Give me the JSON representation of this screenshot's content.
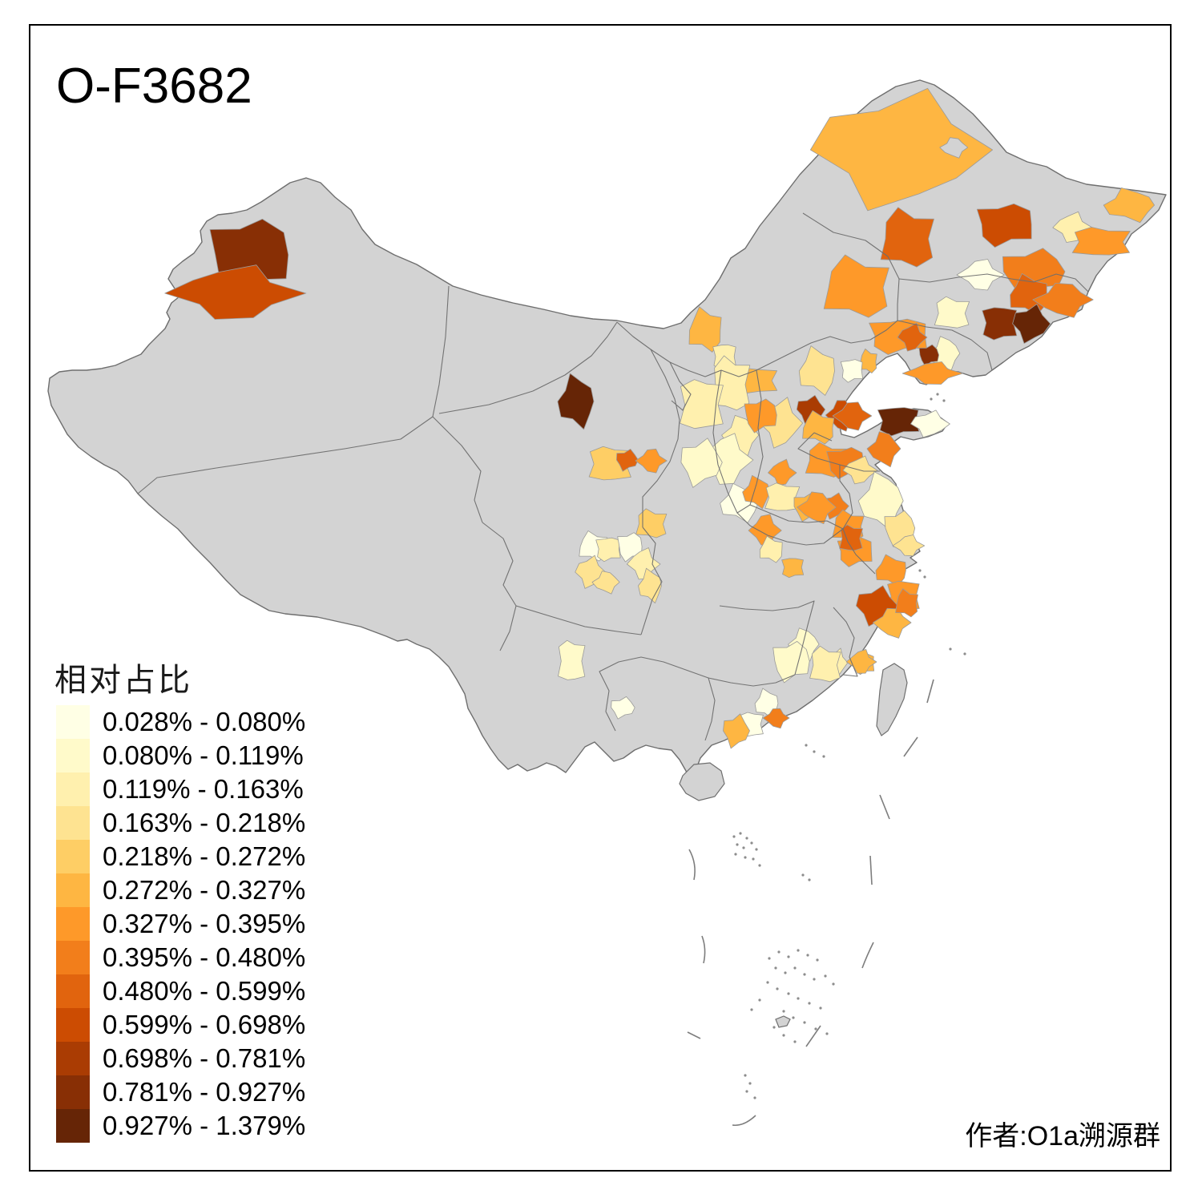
{
  "title": "O-F3682",
  "attribution": "作者:O1a溯源群",
  "legend": {
    "title": "相对占比",
    "items": [
      {
        "label": "0.028% - 0.080%",
        "color": "#FFFFE5"
      },
      {
        "label": "0.080% - 0.119%",
        "color": "#FFFACA"
      },
      {
        "label": "0.119% - 0.163%",
        "color": "#FFF0AE"
      },
      {
        "label": "0.163% - 0.218%",
        "color": "#FEE391"
      },
      {
        "label": "0.218% - 0.272%",
        "color": "#FECE65"
      },
      {
        "label": "0.272% - 0.327%",
        "color": "#FEB642"
      },
      {
        "label": "0.327% - 0.395%",
        "color": "#FE9929"
      },
      {
        "label": "0.395% - 0.480%",
        "color": "#F27E1B"
      },
      {
        "label": "0.480% - 0.599%",
        "color": "#E1640E"
      },
      {
        "label": "0.599% - 0.698%",
        "color": "#CC4C02"
      },
      {
        "label": "0.698% - 0.781%",
        "color": "#AA3C03"
      },
      {
        "label": "0.781% - 0.927%",
        "color": "#882F05"
      },
      {
        "label": "0.927% - 1.379%",
        "color": "#662506"
      }
    ]
  },
  "map": {
    "land_color": "#D3D3D3",
    "border_color": "#6E6E6E",
    "background": "#FFFFFF",
    "frame_color": "#000000",
    "regions": [
      {
        "id": "xj1",
        "class": 12
      },
      {
        "id": "xj2",
        "class": 10
      },
      {
        "id": "gs1",
        "class": 13
      },
      {
        "id": "gs2",
        "class": 5
      },
      {
        "id": "gs3",
        "class": 9
      },
      {
        "id": "gs4",
        "class": 7
      },
      {
        "id": "nm1",
        "class": 6
      },
      {
        "id": "nm2",
        "class": 3
      },
      {
        "id": "hl1",
        "class": 6
      },
      {
        "id": "hl2",
        "class": 0
      },
      {
        "id": "hl3",
        "class": 9
      },
      {
        "id": "hl4",
        "class": 10
      },
      {
        "id": "hl5",
        "class": 3
      },
      {
        "id": "hl6",
        "class": 6
      },
      {
        "id": "hl7",
        "class": 7
      },
      {
        "id": "hl8",
        "class": 8
      },
      {
        "id": "jl1",
        "class": 1
      },
      {
        "id": "jl2",
        "class": 9
      },
      {
        "id": "jl3",
        "class": 12
      },
      {
        "id": "jl4",
        "class": 13
      },
      {
        "id": "jl5",
        "class": 8
      },
      {
        "id": "jl6",
        "class": 7
      },
      {
        "id": "ln1",
        "class": 7
      },
      {
        "id": "ln2",
        "class": 9
      },
      {
        "id": "ln3",
        "class": 2
      },
      {
        "id": "ln4",
        "class": 2
      },
      {
        "id": "ln5",
        "class": 12
      },
      {
        "id": "ln6",
        "class": 7
      },
      {
        "id": "he1",
        "class": 4
      },
      {
        "id": "he2",
        "class": 6
      },
      {
        "id": "he3",
        "class": 11
      },
      {
        "id": "he4",
        "class": 10
      },
      {
        "id": "he5",
        "class": 6
      },
      {
        "id": "he6",
        "class": 1
      },
      {
        "id": "he7",
        "class": 4
      },
      {
        "id": "he8",
        "class": 3
      },
      {
        "id": "sx1",
        "class": 3
      },
      {
        "id": "sx2",
        "class": 7
      },
      {
        "id": "sx3",
        "class": 2
      },
      {
        "id": "sx4",
        "class": 1
      },
      {
        "id": "sn1",
        "class": 3
      },
      {
        "id": "sn2",
        "class": 2
      },
      {
        "id": "sd1",
        "class": 9
      },
      {
        "id": "sd2",
        "class": 6
      },
      {
        "id": "sd3",
        "class": 13
      },
      {
        "id": "sd4",
        "class": 1
      },
      {
        "id": "sd5",
        "class": 8
      },
      {
        "id": "sd6",
        "class": 7
      },
      {
        "id": "sd7",
        "class": 8
      },
      {
        "id": "ha1",
        "class": 7
      },
      {
        "id": "ha2",
        "class": 7
      },
      {
        "id": "ha3",
        "class": 3
      },
      {
        "id": "ha4",
        "class": 6
      },
      {
        "id": "ha5",
        "class": 7
      },
      {
        "id": "ha6",
        "class": 3
      },
      {
        "id": "hb1",
        "class": 6
      },
      {
        "id": "ah1",
        "class": 8
      },
      {
        "id": "ah2",
        "class": 7
      },
      {
        "id": "ah3",
        "class": 7
      },
      {
        "id": "ah4",
        "class": 7
      },
      {
        "id": "js1",
        "class": 4
      },
      {
        "id": "js2",
        "class": 2
      },
      {
        "id": "js3",
        "class": 9
      },
      {
        "id": "js4",
        "class": 4
      },
      {
        "id": "js5",
        "class": 4
      },
      {
        "id": "zj1",
        "class": 7
      },
      {
        "id": "zj2",
        "class": 7
      },
      {
        "id": "zj3",
        "class": 10
      },
      {
        "id": "zj4",
        "class": 6
      },
      {
        "id": "fj1",
        "class": 8
      },
      {
        "id": "fj2",
        "class": 6
      },
      {
        "id": "fj3",
        "class": 3
      },
      {
        "id": "jx1",
        "class": 2
      },
      {
        "id": "jx2",
        "class": 3
      },
      {
        "id": "gd1",
        "class": 2
      },
      {
        "id": "gd2",
        "class": 6
      },
      {
        "id": "gd3",
        "class": 1
      },
      {
        "id": "gd4",
        "class": 1
      },
      {
        "id": "gd5",
        "class": 6
      },
      {
        "id": "gd6",
        "class": 8
      },
      {
        "id": "sc1",
        "class": 1
      },
      {
        "id": "sc2",
        "class": 3
      },
      {
        "id": "sc3",
        "class": 4
      },
      {
        "id": "sc4",
        "class": 4
      },
      {
        "id": "sc5",
        "class": 5
      },
      {
        "id": "cq1",
        "class": 1
      },
      {
        "id": "cq2",
        "class": 3
      },
      {
        "id": "cq3",
        "class": 4
      },
      {
        "id": "yn1",
        "class": 2
      },
      {
        "id": "gz1",
        "class": 1
      }
    ]
  }
}
